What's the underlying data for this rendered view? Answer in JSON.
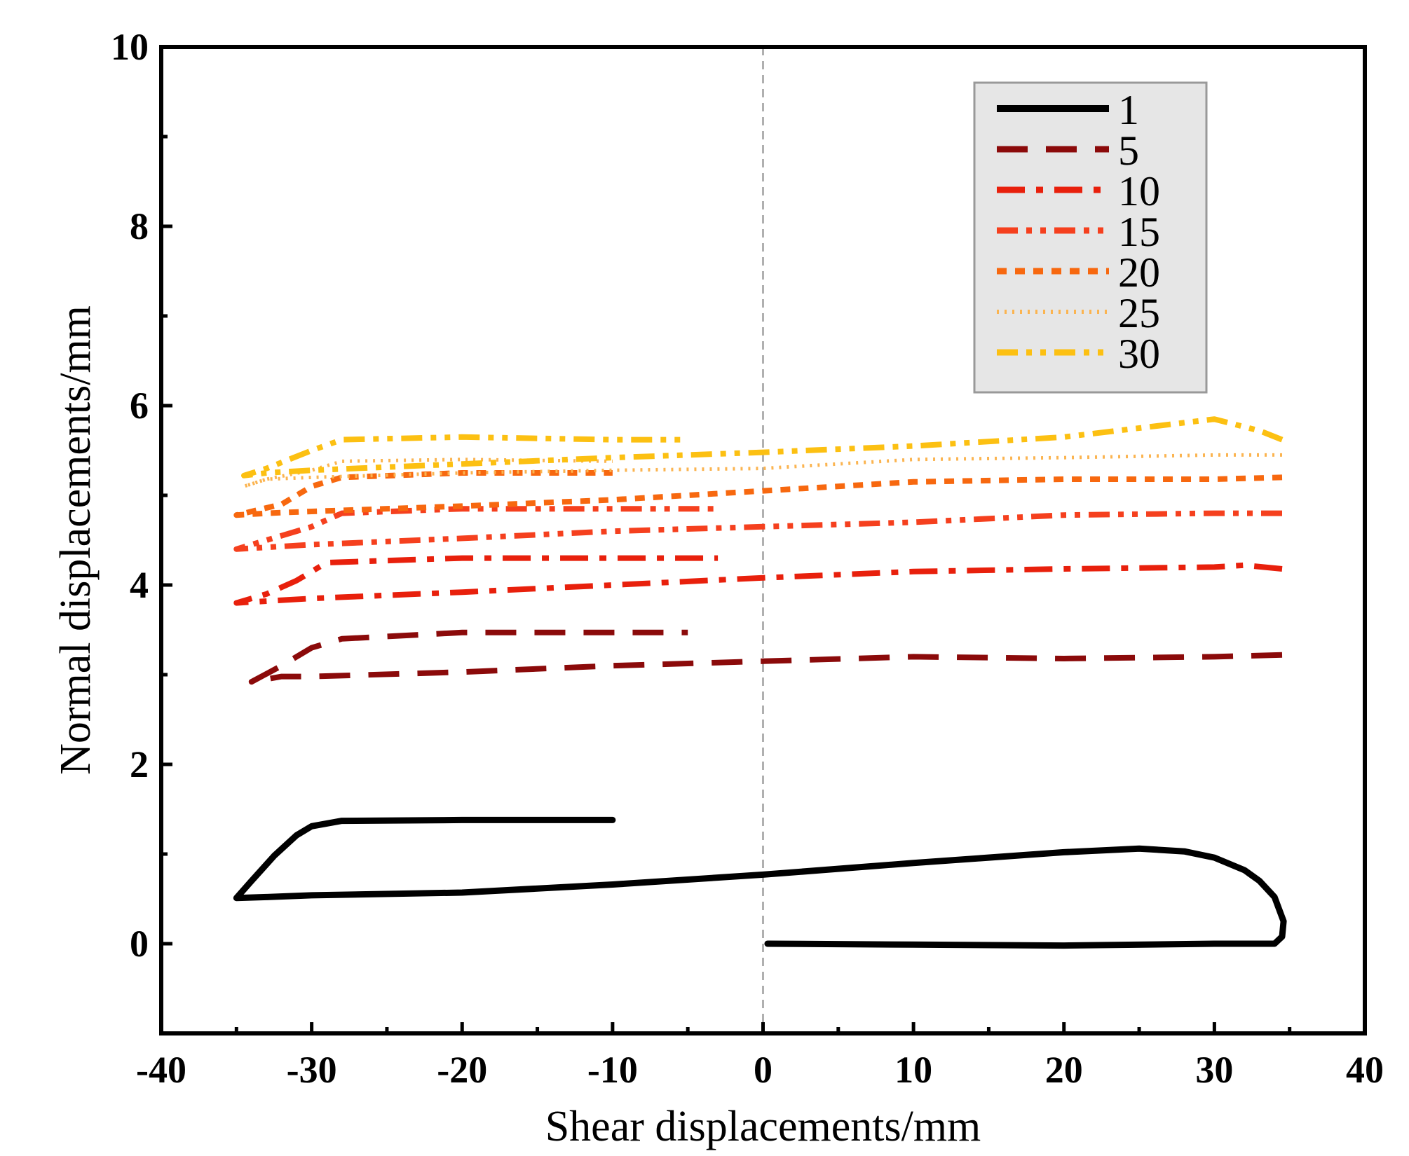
{
  "chart_data": {
    "type": "line",
    "title": "",
    "xlabel": "Shear displacements/mm",
    "ylabel": "Normal displacements/mm",
    "xlim": [
      -40,
      40
    ],
    "ylim": [
      -1,
      10
    ],
    "xticks": [
      -40,
      -30,
      -20,
      -10,
      0,
      10,
      20,
      30,
      40
    ],
    "yticks": [
      0,
      2,
      4,
      6,
      8,
      10
    ],
    "grid": false,
    "zero_reference_line": true,
    "legend_position": "top-right",
    "series": [
      {
        "name": "1",
        "color": "#000000",
        "dash": "solid",
        "x": [
          0.3,
          10,
          20,
          30,
          34,
          34.5,
          34.6,
          34,
          33,
          32,
          30,
          28,
          25,
          20,
          10,
          0,
          -10,
          -20,
          -30,
          -33,
          -35,
          -34,
          -32.5,
          -31,
          -30,
          -28,
          -20,
          -10
        ],
        "y": [
          0.0,
          -0.01,
          -0.02,
          0.0,
          0.0,
          0.08,
          0.25,
          0.52,
          0.7,
          0.82,
          0.96,
          1.03,
          1.06,
          1.02,
          0.9,
          0.77,
          0.66,
          0.57,
          0.54,
          0.52,
          0.51,
          0.7,
          0.98,
          1.21,
          1.31,
          1.37,
          1.38,
          1.38
        ]
      },
      {
        "name": "5",
        "color": "#8b0a0a",
        "dash": "long-dash",
        "x": [
          34.5,
          30,
          20,
          10,
          0,
          -10,
          -20,
          -30,
          -32,
          -34,
          -32,
          -30,
          -28,
          -20,
          -10,
          -5
        ],
        "y": [
          3.22,
          3.2,
          3.18,
          3.2,
          3.15,
          3.1,
          3.03,
          2.98,
          2.98,
          2.92,
          3.1,
          3.3,
          3.4,
          3.47,
          3.47,
          3.47
        ]
      },
      {
        "name": "10",
        "color": "#e8200c",
        "dash": "dash-dot",
        "x": [
          34.5,
          32,
          30,
          20,
          10,
          0,
          -10,
          -20,
          -30,
          -33,
          -35,
          -33,
          -31,
          -29,
          -20,
          -10,
          -3
        ],
        "y": [
          4.18,
          4.22,
          4.2,
          4.18,
          4.15,
          4.08,
          4.0,
          3.92,
          3.85,
          3.82,
          3.8,
          3.9,
          4.05,
          4.25,
          4.3,
          4.3,
          4.3
        ]
      },
      {
        "name": "15",
        "color": "#f5401e",
        "dash": "dash-dot-dot",
        "x": [
          34.5,
          30,
          20,
          10,
          0,
          -10,
          -20,
          -30,
          -33,
          -35,
          -33,
          -30,
          -28,
          -20,
          -10,
          -3
        ],
        "y": [
          4.8,
          4.8,
          4.78,
          4.7,
          4.65,
          4.6,
          4.52,
          4.45,
          4.42,
          4.4,
          4.5,
          4.65,
          4.8,
          4.85,
          4.85,
          4.85
        ]
      },
      {
        "name": "20",
        "color": "#f7680f",
        "dash": "short-dash",
        "x": [
          34.5,
          30,
          20,
          10,
          0,
          -10,
          -20,
          -30,
          -33,
          -35,
          -32,
          -30,
          -28,
          -20,
          -10
        ],
        "y": [
          5.2,
          5.18,
          5.18,
          5.15,
          5.05,
          4.95,
          4.88,
          4.82,
          4.8,
          4.78,
          4.9,
          5.1,
          5.2,
          5.25,
          5.25
        ]
      },
      {
        "name": "25",
        "color": "#fbb450",
        "dash": "dot",
        "x": [
          34.5,
          30,
          20,
          10,
          0,
          -10,
          -20,
          -30,
          -33,
          -34.5,
          -33,
          -30,
          -28,
          -20,
          -10
        ],
        "y": [
          5.45,
          5.45,
          5.42,
          5.4,
          5.3,
          5.28,
          5.25,
          5.2,
          5.18,
          5.1,
          5.18,
          5.28,
          5.38,
          5.4,
          5.38
        ]
      },
      {
        "name": "30",
        "color": "#fcc012",
        "dash": "dash-dot-dot",
        "x": [
          34.5,
          33,
          30,
          20,
          10,
          0,
          -10,
          -20,
          -30,
          -33,
          -34.5,
          -33,
          -30,
          -28,
          -20,
          -10,
          -5
        ],
        "y": [
          5.62,
          5.72,
          5.85,
          5.65,
          5.55,
          5.48,
          5.42,
          5.35,
          5.28,
          5.25,
          5.22,
          5.3,
          5.5,
          5.62,
          5.65,
          5.62,
          5.62
        ]
      }
    ]
  }
}
